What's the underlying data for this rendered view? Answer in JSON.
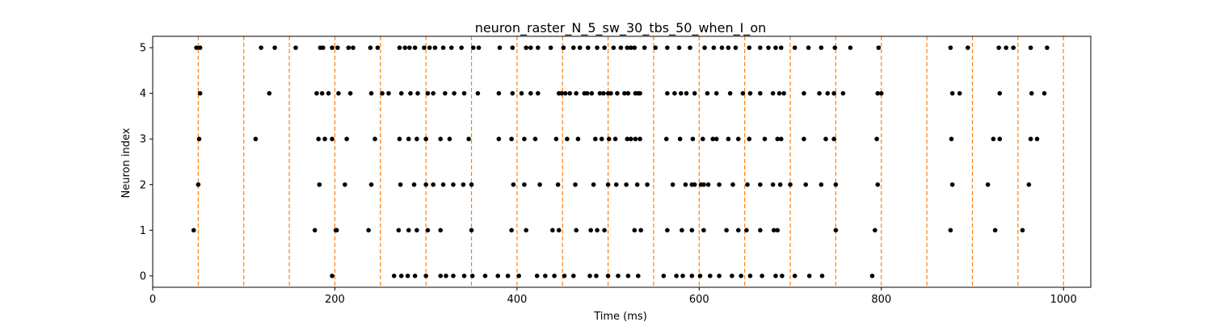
{
  "chart_data": {
    "type": "scatter",
    "title": "neuron_raster_N_5_sw_30_tbs_50_when_I_on",
    "xlabel": "Time (ms)",
    "ylabel": "Neuron index",
    "xlim": [
      0,
      1030
    ],
    "ylim": [
      -0.25,
      5.25
    ],
    "x_ticks": [
      0,
      200,
      400,
      600,
      800,
      1000
    ],
    "x_tick_labels": [
      "0",
      "200",
      "400",
      "600",
      "800",
      "1000"
    ],
    "y_ticks": [
      0,
      1,
      2,
      3,
      4,
      5
    ],
    "y_tick_labels": [
      "0",
      "1",
      "2",
      "3",
      "4",
      "5"
    ],
    "grid": false,
    "marker_color": "#000000",
    "vline_color": "#ff7f0e",
    "vlines": [
      50,
      100,
      150,
      200,
      250,
      300,
      350,
      400,
      450,
      500,
      550,
      600,
      650,
      700,
      750,
      800,
      850,
      900,
      950,
      1000
    ],
    "series": [
      {
        "neuron": 0,
        "times": [
          197,
          265,
          273,
          280,
          288,
          300,
          316,
          322,
          330,
          342,
          351,
          365,
          379,
          390,
          402,
          422,
          431,
          441,
          452,
          462,
          480,
          487,
          500,
          511,
          522,
          533,
          561,
          575,
          582,
          592,
          601,
          612,
          622,
          636,
          646,
          656,
          669,
          684,
          691,
          705,
          721,
          735,
          790
        ]
      },
      {
        "neuron": 1,
        "times": [
          45,
          178,
          201,
          202,
          237,
          270,
          281,
          290,
          302,
          316,
          350,
          394,
          410,
          439,
          446,
          465,
          481,
          488,
          496,
          529,
          536,
          565,
          581,
          592,
          605,
          630,
          643,
          652,
          667,
          682,
          686,
          750,
          793,
          876,
          925,
          955
        ]
      },
      {
        "neuron": 2,
        "times": [
          50,
          183,
          211,
          240,
          272,
          287,
          300,
          308,
          319,
          330,
          341,
          350,
          396,
          408,
          425,
          445,
          464,
          484,
          500,
          509,
          520,
          532,
          543,
          571,
          585,
          592,
          595,
          602,
          605,
          610,
          622,
          637,
          653,
          667,
          681,
          689,
          700,
          717,
          734,
          750,
          796,
          878,
          917,
          962
        ]
      },
      {
        "neuron": 3,
        "times": [
          51,
          113,
          182,
          189,
          197,
          213,
          244,
          271,
          281,
          290,
          300,
          316,
          326,
          347,
          380,
          394,
          408,
          420,
          443,
          455,
          467,
          486,
          493,
          501,
          508,
          521,
          525,
          530,
          535,
          564,
          579,
          593,
          604,
          615,
          619,
          632,
          643,
          655,
          672,
          686,
          690,
          715,
          739,
          748,
          795,
          877,
          923,
          930,
          964,
          971
        ]
      },
      {
        "neuron": 4,
        "times": [
          52,
          128,
          180,
          186,
          193,
          204,
          217,
          240,
          252,
          259,
          273,
          283,
          291,
          302,
          308,
          321,
          331,
          342,
          357,
          380,
          395,
          405,
          415,
          423,
          446,
          449,
          453,
          458,
          465,
          474,
          477,
          482,
          491,
          495,
          500,
          503,
          510,
          518,
          522,
          530,
          533,
          535,
          565,
          573,
          580,
          586,
          595,
          609,
          619,
          634,
          648,
          656,
          667,
          681,
          688,
          693,
          715,
          732,
          741,
          748,
          758,
          796,
          800,
          878,
          886,
          930,
          965,
          979
        ]
      },
      {
        "neuron": 5,
        "times": [
          48,
          52,
          119,
          134,
          157,
          184,
          187,
          197,
          203,
          215,
          220,
          239,
          247,
          271,
          277,
          282,
          288,
          298,
          304,
          310,
          319,
          328,
          339,
          352,
          358,
          381,
          395,
          410,
          415,
          423,
          437,
          451,
          462,
          469,
          478,
          488,
          496,
          506,
          514,
          521,
          525,
          529,
          540,
          552,
          565,
          578,
          590,
          606,
          616,
          625,
          632,
          640,
          655,
          667,
          676,
          684,
          690,
          705,
          720,
          734,
          749,
          766,
          797,
          876,
          895,
          929,
          937,
          945,
          964,
          982
        ]
      }
    ]
  }
}
